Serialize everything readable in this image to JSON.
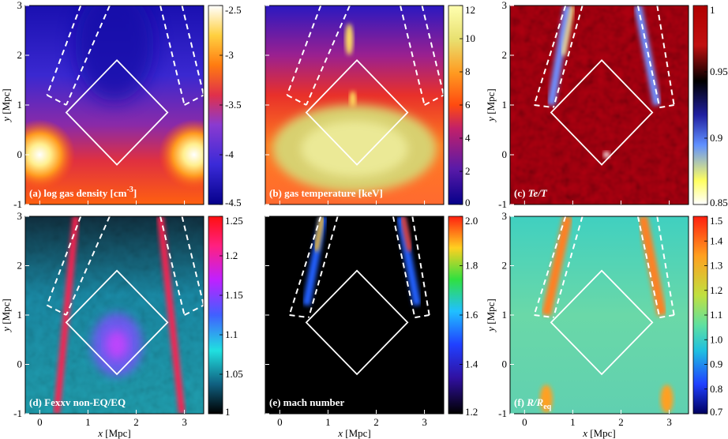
{
  "figure": {
    "panels": [
      {
        "id": "a",
        "label": "(a) log gas density [cm",
        "label_sup": "-3",
        "label_suffix": "]",
        "colorbar": {
          "min": -4.5,
          "max": -2.5,
          "ticks": [
            "-2.5",
            "-3",
            "-3.5",
            "-4",
            "-4.5"
          ],
          "colors": [
            "#05008a",
            "#3a2ad8",
            "#8a3ad0",
            "#e0304a",
            "#ff7b10",
            "#ffd040",
            "#ffffff"
          ]
        },
        "show_x_ticks": false,
        "show_y_ticks": true,
        "overlay": "wide"
      },
      {
        "id": "b",
        "label": "(b) gas temperature [keV]",
        "label_sup": "",
        "label_suffix": "",
        "colorbar": {
          "min": 0,
          "max": 12,
          "ticks": [
            "12",
            "10",
            "8",
            "6",
            "4",
            "2",
            "0"
          ],
          "colors": [
            "#05008a",
            "#5a1aa8",
            "#c0206a",
            "#ff4a10",
            "#ff9a20",
            "#e8e070",
            "#ffffb0"
          ]
        },
        "show_x_ticks": false,
        "show_y_ticks": false,
        "overlay": "wide"
      },
      {
        "id": "c",
        "label": "(c) ",
        "label_sup": "",
        "label_suffix": "",
        "label_italic": "Te/T",
        "colorbar": {
          "min": 0.85,
          "max": 1,
          "ticks": [
            "1",
            "0.95",
            "0.9",
            "0.85"
          ],
          "colors": [
            "#ffffff",
            "#ffff60",
            "#6090ff",
            "#2020a0",
            "#000000",
            "#c01010",
            "#b00000"
          ]
        },
        "show_x_ticks": false,
        "show_y_ticks": true,
        "overlay": "narrow"
      },
      {
        "id": "d",
        "label": "(d) Fexxv non-EQ/EQ",
        "label_sup": "",
        "label_suffix": "",
        "colorbar": {
          "min": 1,
          "max": 1.25,
          "ticks": [
            "1.25",
            "1.2",
            "1.15",
            "1.1",
            "1.05",
            "1"
          ],
          "colors": [
            "#000000",
            "#106080",
            "#20e0e0",
            "#4060ff",
            "#c020ff",
            "#ff2080",
            "#ff1010"
          ]
        },
        "show_x_ticks": true,
        "show_y_ticks": true,
        "overlay": "wide"
      },
      {
        "id": "e",
        "label": "(e) mach number",
        "label_sup": "",
        "label_suffix": "",
        "colorbar": {
          "min": 1.2,
          "max": 2.0,
          "ticks": [
            "2.0",
            "1.8",
            "1.6",
            "1.4",
            "1.2"
          ],
          "colors": [
            "#000000",
            "#3010a0",
            "#2040ff",
            "#20c0ff",
            "#30e040",
            "#ffd020",
            "#ff2010"
          ]
        },
        "show_x_ticks": true,
        "show_y_ticks": false,
        "overlay": "narrow"
      },
      {
        "id": "f",
        "label": "(f) ",
        "label_sup": "",
        "label_suffix": "",
        "label_italic": "R/R",
        "label_sub": "eq",
        "colorbar": {
          "min": 0.7,
          "max": 1.5,
          "ticks": [
            "1.5",
            "1.4",
            "1.3",
            "1.2",
            "1.1",
            "1.0",
            "0.9",
            "0.8",
            "0.7"
          ],
          "colors": [
            "#000060",
            "#2040ff",
            "#20c0e0",
            "#60e0a0",
            "#c0e040",
            "#ffa020",
            "#ff2010"
          ]
        },
        "show_x_ticks": true,
        "show_y_ticks": true,
        "overlay": "narrow"
      }
    ],
    "axes": {
      "xlabel": "x",
      "xunit": " [Mpc]",
      "ylabel": "y",
      "yunit": " [Mpc]",
      "x_ticks": [
        "0",
        "1",
        "2",
        "3"
      ],
      "y_ticks": [
        "3",
        "2",
        "1",
        "0",
        "-1"
      ]
    }
  }
}
